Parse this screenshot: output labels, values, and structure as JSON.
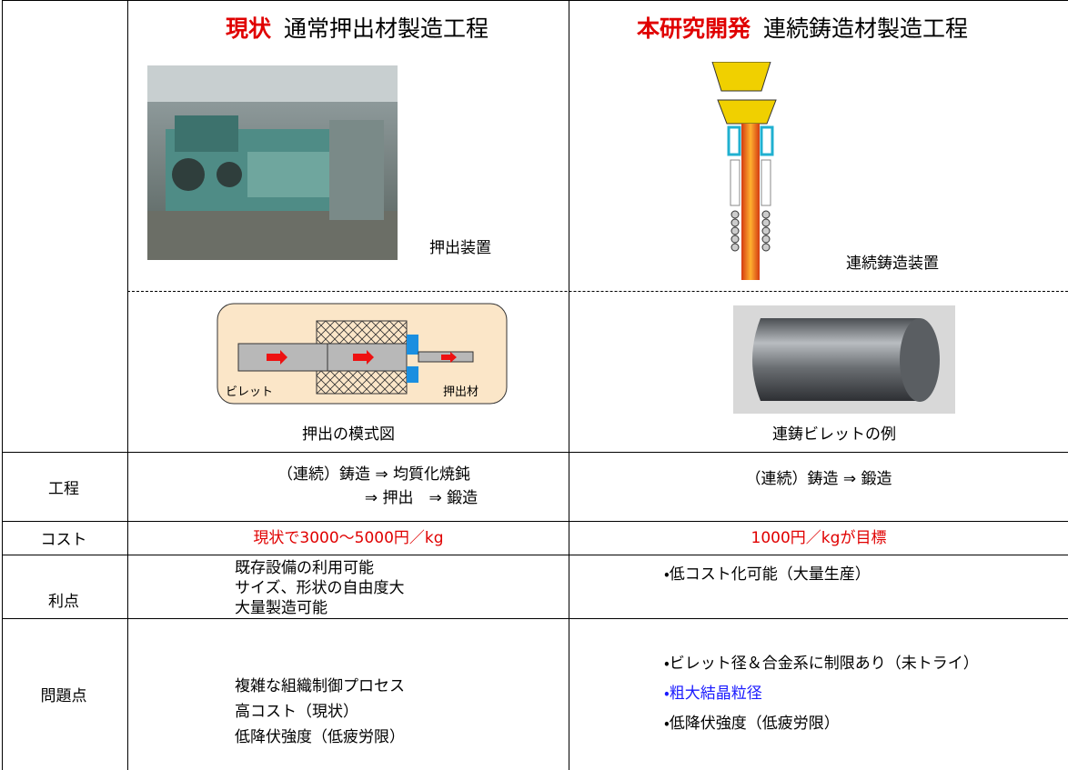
{
  "header": {
    "left": {
      "highlight": "現状",
      "title": "通常押出材製造工程"
    },
    "right": {
      "highlight": "本研究開発",
      "title": "連続鋳造材製造工程"
    }
  },
  "figures": {
    "extrusion_machine": "押出装置",
    "casting_machine": "連続鋳造装置",
    "extrusion_diagram": "押出の模式図",
    "billet_example": "連鋳ビレットの例"
  },
  "diagram": {
    "billet": "ビレット",
    "product": "押出材"
  },
  "rows": [
    {
      "label": "工程",
      "left": [
        "（連続）鋳造 ⇒ 均質化焼鈍",
        "⇒ 押出　⇒ 鍛造"
      ],
      "right": [
        "（連続）鋳造 ⇒ 鍛造"
      ]
    },
    {
      "label": "コスト",
      "left": [
        "現状で3000～5000円／kg"
      ],
      "right": [
        "1000円／kgが目標"
      ]
    },
    {
      "label": "利点",
      "left": [
        "既存設備の利用可能",
        "サイズ、形状の自由度大",
        "大量製造可能"
      ],
      "right": [
        "・低コスト化可能（大量生産）"
      ]
    },
    {
      "label": "問題点",
      "left": [
        "複雑な組織制御プロセス",
        "高コスト（現状）",
        "低降伏強度（低疲労限）"
      ],
      "right": [
        "・ビレット径＆合金系に制限あり（未トライ）",
        "・粗大結晶粒径",
        "・低降伏強度（低疲労限）"
      ]
    }
  ]
}
